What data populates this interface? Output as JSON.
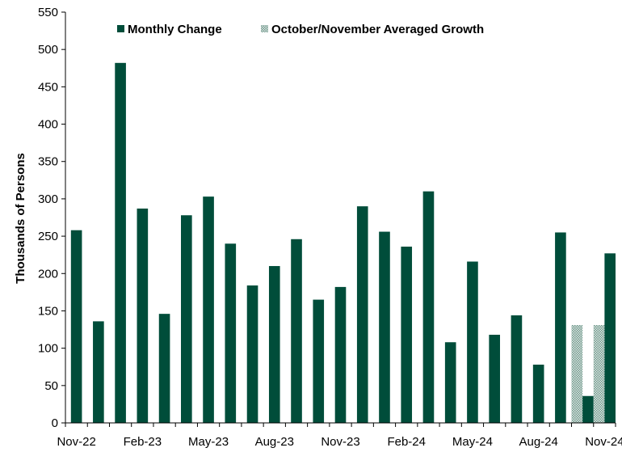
{
  "chart_data": {
    "type": "bar",
    "ylabel": "Thousands of Persons",
    "ylim": [
      0,
      550
    ],
    "yticks": [
      0,
      50,
      100,
      150,
      200,
      250,
      300,
      350,
      400,
      450,
      500,
      550
    ],
    "categories": [
      "Nov-22",
      "Dec-22",
      "Jan-23",
      "Feb-23",
      "Mar-23",
      "Apr-23",
      "May-23",
      "Jun-23",
      "Jul-23",
      "Aug-23",
      "Sep-23",
      "Oct-23",
      "Nov-23",
      "Dec-23",
      "Jan-24",
      "Feb-24",
      "Mar-24",
      "Apr-24",
      "May-24",
      "Jun-24",
      "Jul-24",
      "Aug-24",
      "Sep-24",
      "Oct-24",
      "Nov-24"
    ],
    "xtick_labels": [
      "Nov-22",
      "",
      "",
      "Feb-23",
      "",
      "",
      "May-23",
      "",
      "",
      "Aug-23",
      "",
      "",
      "Nov-23",
      "",
      "",
      "Feb-24",
      "",
      "",
      "May-24",
      "",
      "",
      "Aug-24",
      "",
      "",
      "Nov-24"
    ],
    "series": [
      {
        "name": "Monthly Change",
        "color": "#004d3a",
        "values": [
          258,
          136,
          482,
          287,
          146,
          278,
          303,
          240,
          184,
          210,
          246,
          165,
          182,
          290,
          256,
          236,
          310,
          108,
          216,
          118,
          144,
          78,
          255,
          36,
          227
        ]
      },
      {
        "name": "October/November Averaged Growth",
        "color": "#8fb0a6",
        "pattern": "dotted",
        "values": [
          null,
          null,
          null,
          null,
          null,
          null,
          null,
          null,
          null,
          null,
          null,
          null,
          null,
          null,
          null,
          null,
          null,
          null,
          null,
          null,
          null,
          null,
          null,
          131,
          131
        ]
      }
    ],
    "legend_position": "top",
    "grid": false
  }
}
